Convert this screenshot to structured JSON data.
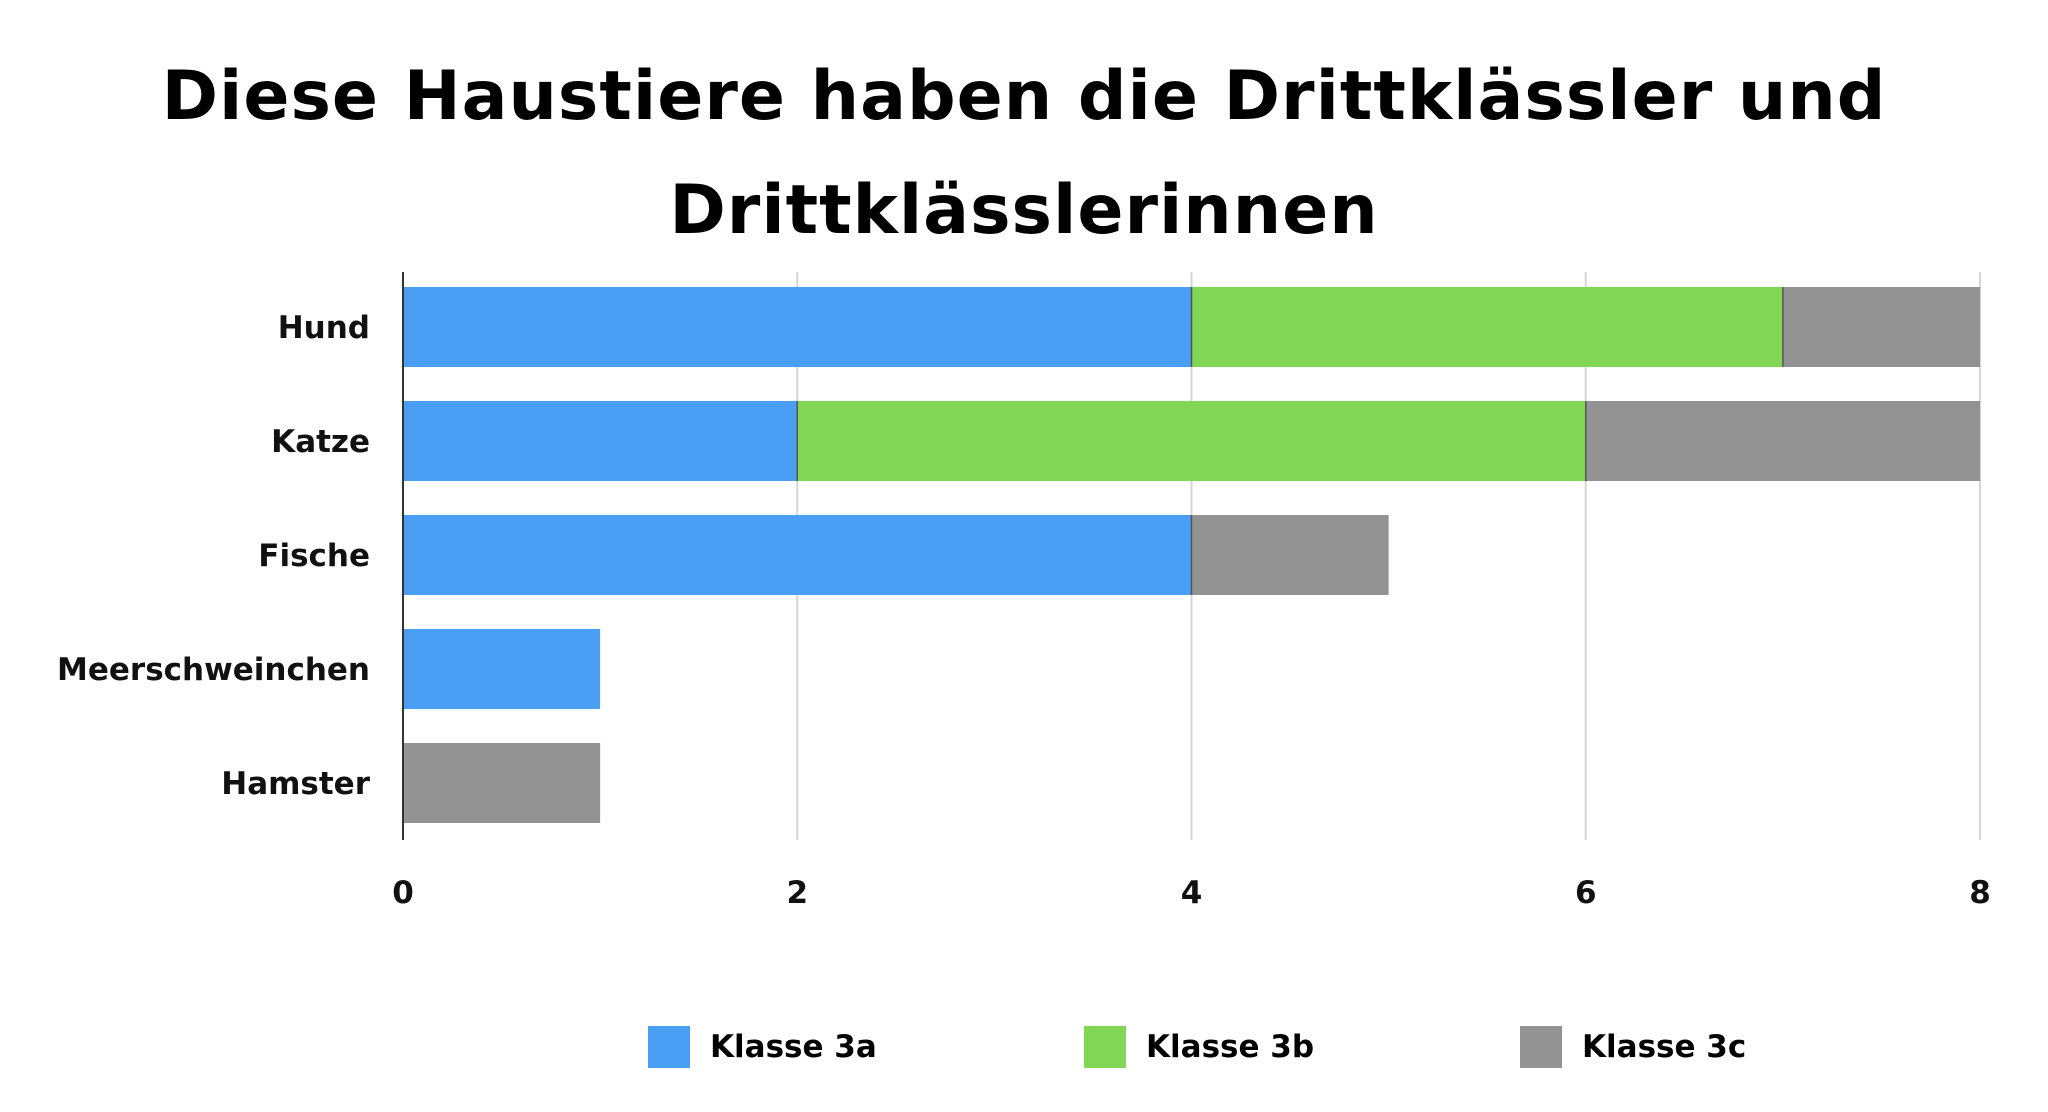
{
  "chart_data": {
    "type": "bar",
    "orientation": "horizontal",
    "stacked": true,
    "title": "Diese Haustiere haben die Drittklässler und Drittklässlerinnen",
    "title_lines": [
      "Diese Haustiere haben die Drittklässler und",
      "Drittklässlerinnen"
    ],
    "categories": [
      "Hund",
      "Katze",
      "Fische",
      "Meerschweinchen",
      "Hamster"
    ],
    "series": [
      {
        "name": "Klasse 3a",
        "color": "#4a9ff5",
        "values": [
          4,
          2,
          4,
          1,
          0
        ]
      },
      {
        "name": "Klasse 3b",
        "color": "#82d655",
        "values": [
          3,
          4,
          0,
          0,
          0
        ]
      },
      {
        "name": "Klasse 3c",
        "color": "#939393",
        "values": [
          1,
          2,
          1,
          0,
          1
        ]
      }
    ],
    "xlim": [
      0,
      8
    ],
    "xticks": [
      0,
      2,
      4,
      6,
      8
    ],
    "xlabel": "",
    "ylabel": "",
    "grid": "vertical",
    "legend_position": "bottom"
  }
}
